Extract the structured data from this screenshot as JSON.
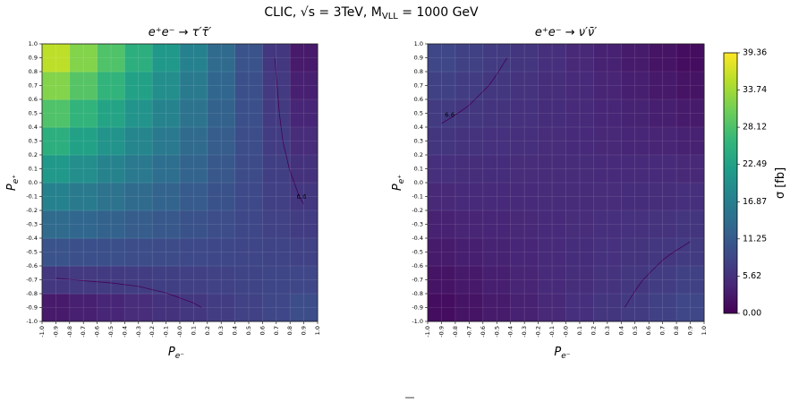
{
  "title": [
    "CLIC, √s = 3TeV, M",
    "VLL",
    " = 1000 GeV"
  ],
  "footer": "—",
  "colorbar": {
    "label": "σ [fb]",
    "lim": [
      0,
      39.36
    ],
    "cmap": "viridis",
    "ticks": [
      {
        "value": 0,
        "label": "0.00"
      },
      5.62,
      11.25,
      16.87,
      22.49,
      28.12,
      33.74,
      39.36
    ]
  },
  "chart_data": [
    {
      "type": "heatmap",
      "title": "e⁺e⁻ → τ′τ̄′",
      "xlabel": {
        "text": "P",
        "sub": "e⁻"
      },
      "ylabel": {
        "text": "P",
        "sub": "e⁺"
      },
      "xlim": [
        -1,
        1
      ],
      "ylim": [
        -1,
        1
      ],
      "xticks": [
        {
          "value": -1,
          "label": "-1.0"
        },
        -0.9,
        -0.8,
        -0.7,
        -0.6,
        -0.5,
        -0.4,
        -0.3,
        -0.2,
        -0.1,
        {
          "value": 0,
          "label": "-0.0"
        },
        0.1,
        0.2,
        0.3,
        0.4,
        0.5,
        0.6,
        0.7,
        0.8,
        0.9,
        {
          "value": 1,
          "label": "1.0"
        }
      ],
      "yticks": [
        {
          "value": -1,
          "label": "-1.0"
        },
        -0.9,
        -0.8,
        -0.7,
        -0.6,
        -0.5,
        -0.4,
        -0.3,
        -0.2,
        -0.1,
        {
          "value": 0,
          "label": "0.0"
        },
        0.1,
        0.2,
        0.3,
        0.4,
        0.5,
        0.6,
        0.7,
        0.8,
        0.9,
        {
          "value": 1,
          "label": "1.0"
        }
      ],
      "grid": true,
      "contour_levels": [
        6.6
      ],
      "contour_color": "#440154",
      "z": [
        [
          2.8,
          3.5,
          4.2,
          5.0,
          5.7,
          6.4,
          7.1,
          7.8,
          8.5,
          9.3
        ],
        [
          6.4,
          6.7,
          6.9,
          7.1,
          7.4,
          7.6,
          7.8,
          8.1,
          8.3,
          8.5
        ],
        [
          10.1,
          9.8,
          9.6,
          9.3,
          9.1,
          8.8,
          8.6,
          8.3,
          8.1,
          7.8
        ],
        [
          13.7,
          13.0,
          12.3,
          11.5,
          10.8,
          10.0,
          9.3,
          8.6,
          7.8,
          7.1
        ],
        [
          17.4,
          16.1,
          14.9,
          13.7,
          12.5,
          11.3,
          10.0,
          8.8,
          7.6,
          6.4
        ],
        [
          21.0,
          19.3,
          17.6,
          15.9,
          14.2,
          12.5,
          10.8,
          9.1,
          7.4,
          5.7
        ],
        [
          24.6,
          22.4,
          20.3,
          18.1,
          15.9,
          13.7,
          11.5,
          9.3,
          7.1,
          5.0
        ],
        [
          28.3,
          25.6,
          22.9,
          20.3,
          17.6,
          14.9,
          12.3,
          9.6,
          6.9,
          4.2
        ],
        [
          31.9,
          28.8,
          25.6,
          22.4,
          19.3,
          16.1,
          13.0,
          9.8,
          6.7,
          3.5
        ],
        [
          35.5,
          31.9,
          28.3,
          24.6,
          21.0,
          17.4,
          13.7,
          10.1,
          6.4,
          2.8
        ]
      ]
    },
    {
      "type": "heatmap",
      "title": "e⁺e⁻ → ν′ν̄′",
      "xlabel": {
        "text": "P",
        "sub": "e⁻"
      },
      "ylabel": {
        "text": "P",
        "sub": "e⁺"
      },
      "xlim": [
        -1,
        1
      ],
      "ylim": [
        -1,
        1
      ],
      "xticks": [
        {
          "value": -1,
          "label": "-1.0"
        },
        -0.9,
        -0.8,
        -0.7,
        -0.6,
        -0.5,
        -0.4,
        -0.3,
        -0.2,
        -0.1,
        {
          "value": 0,
          "label": "-0.0"
        },
        0.1,
        0.2,
        0.3,
        0.4,
        0.5,
        0.6,
        0.7,
        0.8,
        0.9,
        {
          "value": 1,
          "label": "1.0"
        }
      ],
      "yticks": [
        {
          "value": -1,
          "label": "-1.0"
        },
        -0.9,
        -0.8,
        -0.7,
        -0.6,
        -0.5,
        -0.4,
        -0.3,
        -0.2,
        -0.1,
        {
          "value": 0,
          "label": "0.0"
        },
        0.1,
        0.2,
        0.3,
        0.4,
        0.5,
        0.6,
        0.7,
        0.8,
        0.9,
        {
          "value": 1,
          "label": "1.0"
        }
      ],
      "grid": true,
      "contour_levels": [
        6.6
      ],
      "contour_color": "#440154",
      "z": [
        [
          1.3,
          2.1,
          2.9,
          3.7,
          4.5,
          5.3,
          6.1,
          6.9,
          7.7,
          8.5
        ],
        [
          2.1,
          2.7,
          3.4,
          4.0,
          4.6,
          5.2,
          5.8,
          6.4,
          7.1,
          7.7
        ],
        [
          2.9,
          3.4,
          3.8,
          4.2,
          4.7,
          5.1,
          5.6,
          6.0,
          6.4,
          6.9
        ],
        [
          3.7,
          4.0,
          4.2,
          4.5,
          4.8,
          5.0,
          5.3,
          5.6,
          5.8,
          6.1
        ],
        [
          4.5,
          4.6,
          4.7,
          4.8,
          4.9,
          4.9,
          5.0,
          5.1,
          5.2,
          5.3
        ],
        [
          5.3,
          5.2,
          5.1,
          5.0,
          4.9,
          4.9,
          4.8,
          4.7,
          4.6,
          4.5
        ],
        [
          6.1,
          5.8,
          5.6,
          5.3,
          5.0,
          4.8,
          4.5,
          4.2,
          4.0,
          3.7
        ],
        [
          6.9,
          6.4,
          6.0,
          5.6,
          5.1,
          4.7,
          4.2,
          3.8,
          3.4,
          2.9
        ],
        [
          7.7,
          7.1,
          6.4,
          5.8,
          5.2,
          4.6,
          4.0,
          3.4,
          2.7,
          2.1
        ],
        [
          8.5,
          7.7,
          6.9,
          6.1,
          5.3,
          4.5,
          3.7,
          2.9,
          2.1,
          1.3
        ]
      ]
    }
  ]
}
